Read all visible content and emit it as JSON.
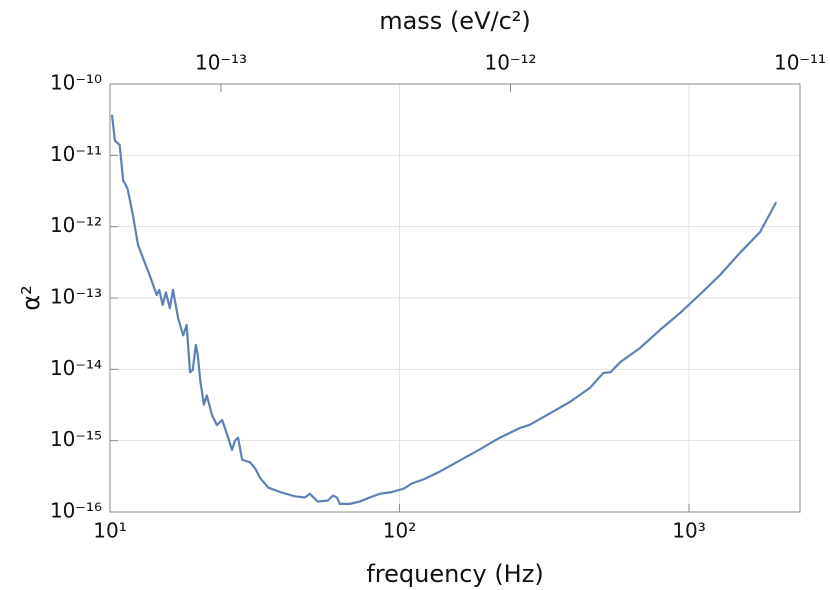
{
  "chart_data": {
    "type": "line",
    "title": "mass (eV/c²)",
    "xlabel": "frequency (Hz)",
    "ylabel": "α²",
    "xscale": "log",
    "yscale": "log",
    "grid": true,
    "xlim": [
      10,
      2418
    ],
    "xticks": [
      {
        "value": 10,
        "label": "10¹"
      },
      {
        "value": 100,
        "label": "10²"
      },
      {
        "value": 1000,
        "label": "10³"
      }
    ],
    "x2lim": [
      4.136e-14,
      1e-11
    ],
    "x2ticks": [
      {
        "value": 1e-13,
        "label": "10⁻¹³"
      },
      {
        "value": 1e-12,
        "label": "10⁻¹²"
      },
      {
        "value": 1e-11,
        "label": "10⁻¹¹"
      }
    ],
    "ylim": [
      1e-16,
      1e-10
    ],
    "yticks": [
      {
        "value": 1e-16,
        "label": "10⁻¹⁶"
      },
      {
        "value": 1e-15,
        "label": "10⁻¹⁵"
      },
      {
        "value": 1e-14,
        "label": "10⁻¹⁴"
      },
      {
        "value": 1e-13,
        "label": "10⁻¹³"
      },
      {
        "value": 1e-12,
        "label": "10⁻¹²"
      },
      {
        "value": 1e-11,
        "label": "10⁻¹¹"
      },
      {
        "value": 1e-10,
        "label": "10⁻¹⁰"
      }
    ],
    "x": [
      10.16,
      10.4,
      10.8,
      11.1,
      11.5,
      12.0,
      12.5,
      13.7,
      14.5,
      14.8,
      15.2,
      15.6,
      16.1,
      16.5,
      17.2,
      17.9,
      18.4,
      18.9,
      19.3,
      19.8,
      20.1,
      20.5,
      21.1,
      21.6,
      22.5,
      23.4,
      24.4,
      25.6,
      26.4,
      27.0,
      27.7,
      28.6,
      30.4,
      31.7,
      33.0,
      35.2,
      38.7,
      43.5,
      47.1,
      49.0,
      52.2,
      56.6,
      58.9,
      60.8,
      62.2,
      67.3,
      72.9,
      79.0,
      85.5,
      94.0,
      104,
      110,
      122,
      138,
      162,
      190,
      222,
      260,
      281,
      330,
      388,
      455,
      506,
      535,
      579,
      678,
      796,
      933,
      1093,
      1280,
      1500,
      1760,
      2000
    ],
    "series": [
      {
        "color": "#5e81b5",
        "values": [
          3.7e-11,
          1.6e-11,
          1.4e-11,
          4.5e-12,
          3.4e-12,
          1.45e-12,
          5.5e-13,
          2.1e-13,
          1.1e-13,
          1.3e-13,
          8e-14,
          1.2e-13,
          7.2e-14,
          1.3e-13,
          5.2e-14,
          3e-14,
          4.2e-14,
          9.1e-15,
          9.8e-15,
          2.2e-14,
          1.6e-14,
          7e-15,
          3.2e-15,
          4.3e-15,
          2.3e-15,
          1.65e-15,
          1.95e-15,
          1.1e-15,
          7.4e-16,
          1e-15,
          1.1e-15,
          5.4e-16,
          5e-16,
          4.1e-16,
          3e-16,
          2.2e-16,
          1.9e-16,
          1.66e-16,
          1.6e-16,
          1.8e-16,
          1.4e-16,
          1.45e-16,
          1.7e-16,
          1.6e-16,
          1.3e-16,
          1.3e-16,
          1.4e-16,
          1.6e-16,
          1.8e-16,
          1.9e-16,
          2.15e-16,
          2.5e-16,
          2.9e-16,
          3.7e-16,
          5.3e-16,
          7.6e-16,
          1.1e-15,
          1.5e-15,
          1.66e-15,
          2.4e-15,
          3.5e-15,
          5.5e-15,
          8.9e-15,
          9.1e-15,
          1.26e-14,
          2e-14,
          3.6e-14,
          6.2e-14,
          1.13e-13,
          2.1e-13,
          4.3e-13,
          8.4e-13,
          2.2e-12
        ]
      }
    ]
  }
}
